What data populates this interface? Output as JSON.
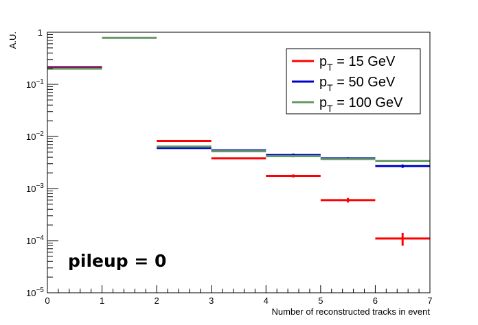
{
  "chart_data": {
    "type": "histogram",
    "xlabel": "Number of reconstructed tracks in event",
    "ylabel": "A.U.",
    "xlim": [
      0,
      7
    ],
    "ylim": [
      1e-05,
      1
    ],
    "yscale": "log",
    "x_ticks": [
      "0",
      "1",
      "2",
      "3",
      "4",
      "5",
      "6",
      "7"
    ],
    "y_ticks": [
      {
        "value": 1e-05,
        "base": "10",
        "exp": "−5"
      },
      {
        "value": 0.0001,
        "base": "10",
        "exp": "−4"
      },
      {
        "value": 0.001,
        "base": "10",
        "exp": "−3"
      },
      {
        "value": 0.01,
        "base": "10",
        "exp": "−2"
      },
      {
        "value": 0.1,
        "base": "10",
        "exp": "−1"
      },
      {
        "value": 1,
        "base": "1",
        "exp": ""
      }
    ],
    "bins": [
      [
        0,
        1
      ],
      [
        1,
        2
      ],
      [
        2,
        3
      ],
      [
        3,
        4
      ],
      [
        4,
        5
      ],
      [
        5,
        6
      ],
      [
        6,
        7
      ]
    ],
    "legend_position": "top-right",
    "annotation": "pileup = 0",
    "series": [
      {
        "name": "p",
        "name_sub": "T",
        "name_rest": " = 15 GeV",
        "color": "#ff0000",
        "values": [
          0.215,
          null,
          0.0082,
          0.0038,
          0.00175,
          0.0006,
          0.00011
        ],
        "errors": [
          0,
          0,
          0.0001,
          0.0001,
          0.00012,
          6e-05,
          3e-05
        ]
      },
      {
        "name": "p",
        "name_sub": "T",
        "name_rest": " = 50 GeV",
        "color": "#0000cc",
        "values": [
          0.205,
          null,
          0.006,
          0.0054,
          0.0044,
          0.0038,
          0.0027
        ],
        "errors": [
          0,
          0,
          0.0001,
          0.0002,
          0.0003,
          0.0002,
          0.0002
        ]
      },
      {
        "name": "p",
        "name_sub": "T",
        "name_rest": " = 100 GeV",
        "color": "#669966",
        "values": [
          0.2,
          0.78,
          0.0064,
          0.0052,
          0.0042,
          0.0037,
          0.0034
        ],
        "errors": [
          0,
          0,
          0.0001,
          0.0002,
          0.0002,
          0.0001,
          0.0001
        ]
      }
    ]
  }
}
